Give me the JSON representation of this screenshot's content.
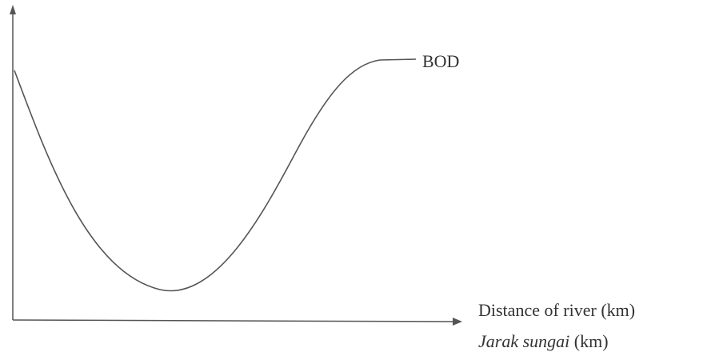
{
  "curve": {
    "label": "BOD"
  },
  "axis": {
    "x_label": "Distance of river (km)",
    "x_label_malay": {
      "italic": "Jarak sungai",
      "plain": "(km)"
    }
  }
}
